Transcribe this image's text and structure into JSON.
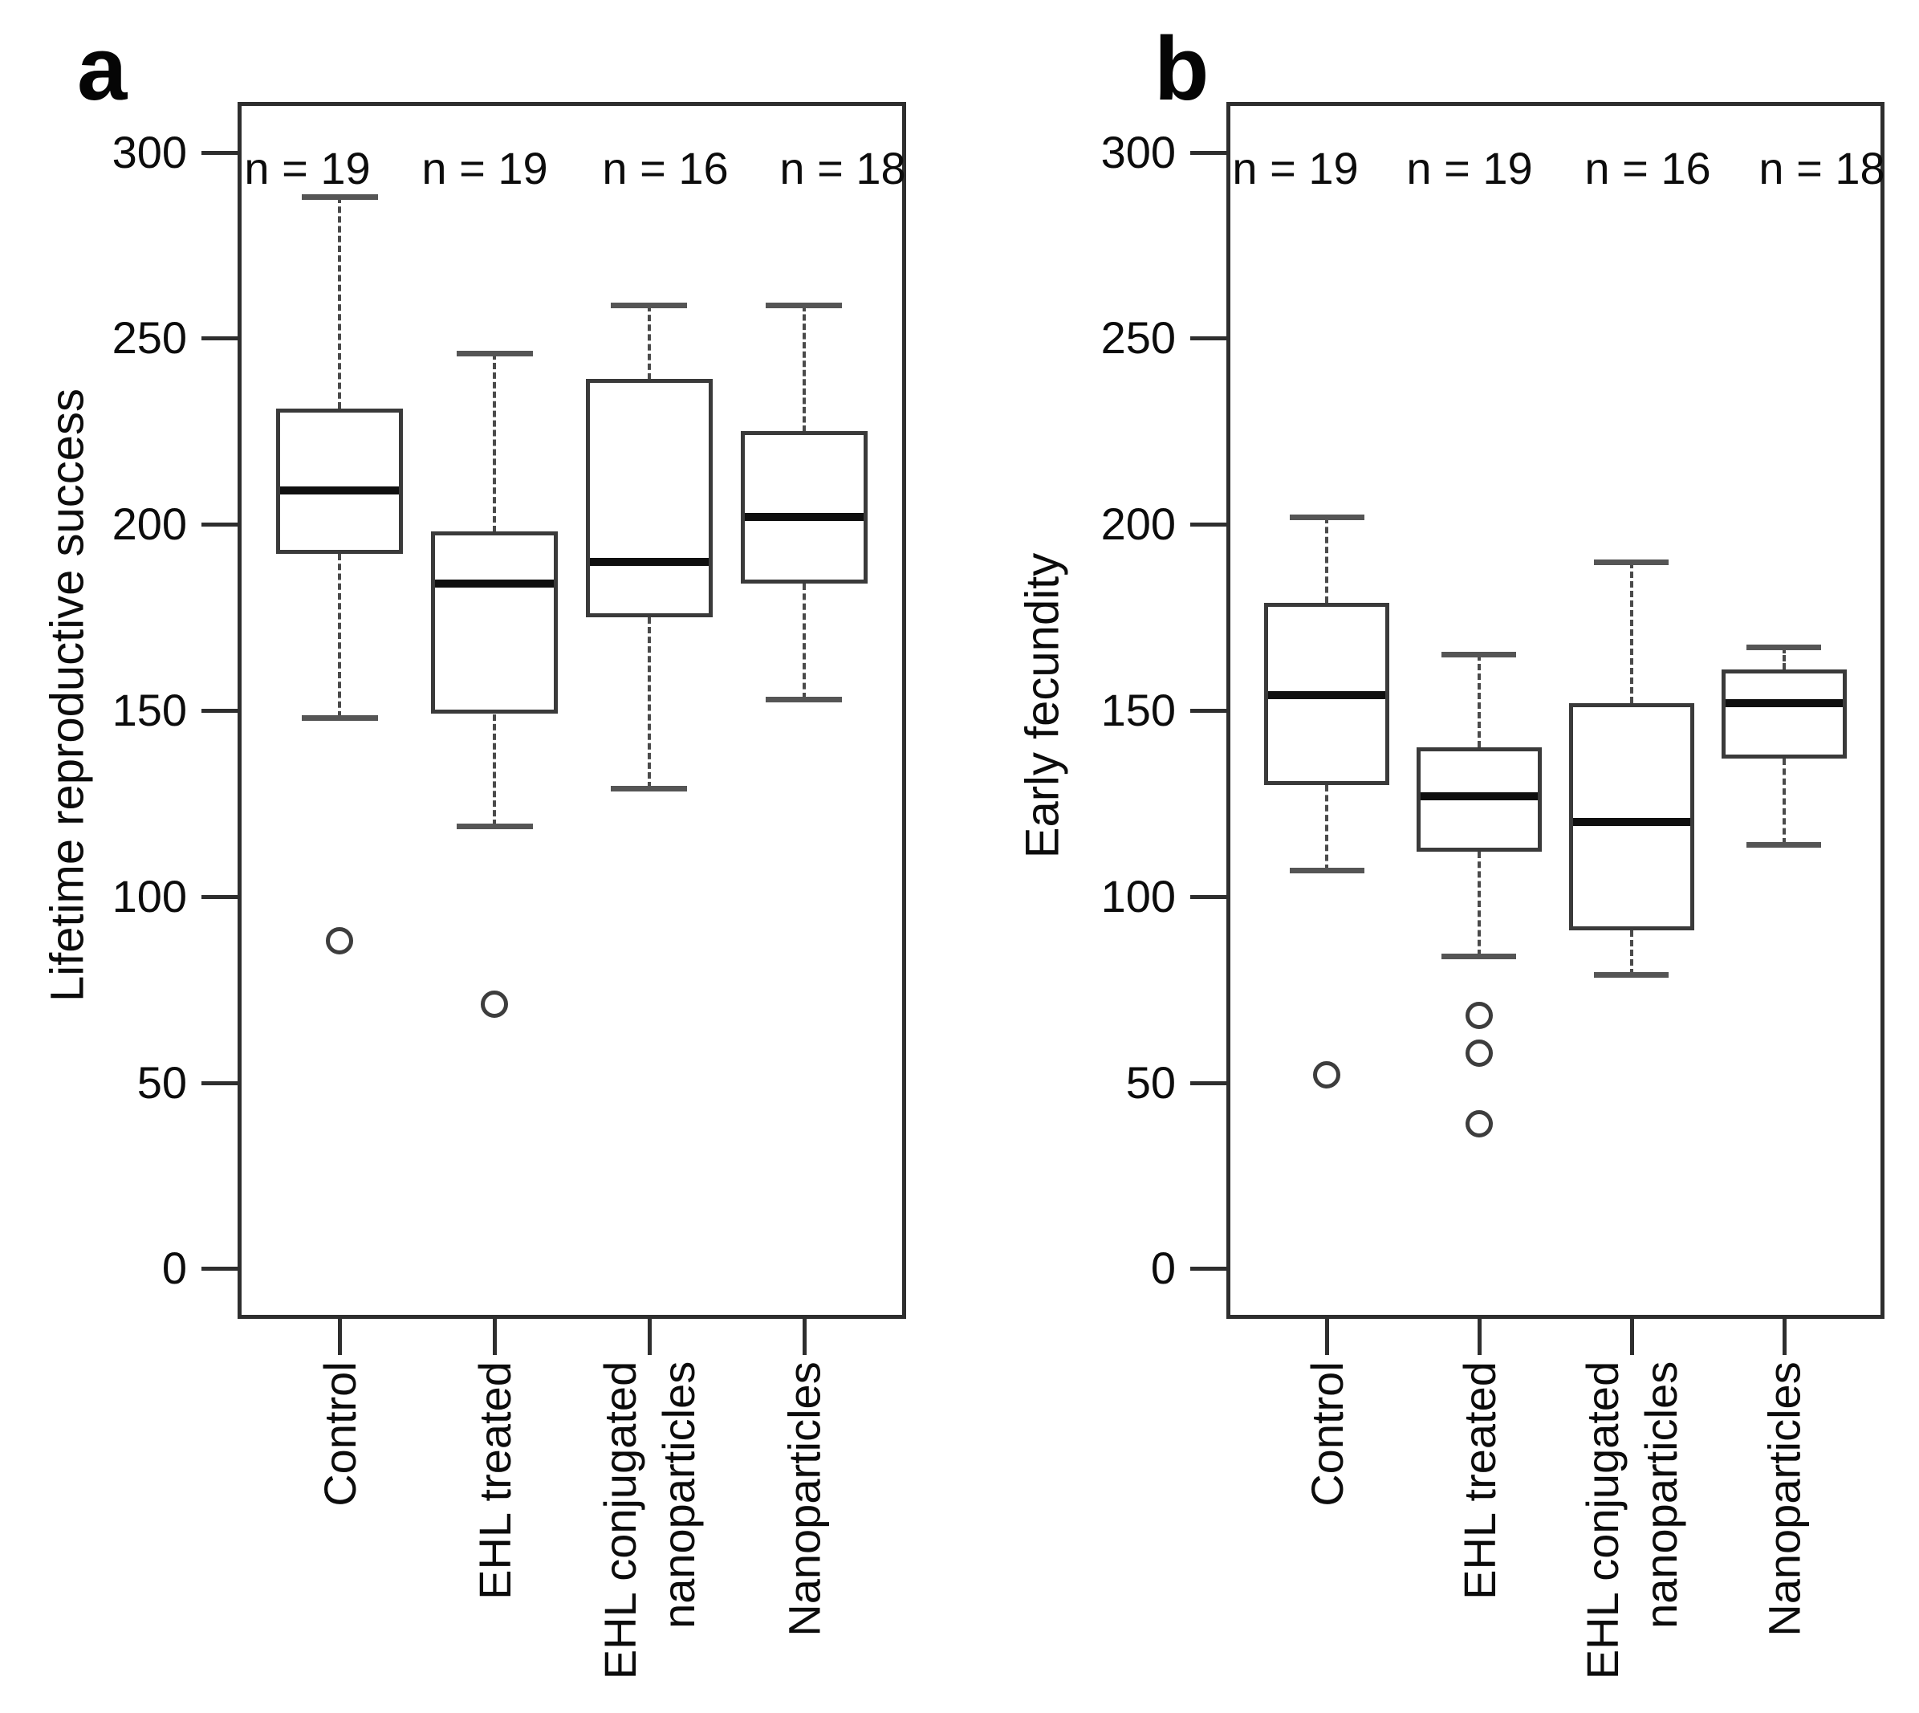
{
  "figure": {
    "background": "#ffffff",
    "ink_color": "#0c0c0c",
    "panels": [
      {
        "letter": "a",
        "y_label": "Lifetime reproductive success"
      },
      {
        "letter": "b",
        "y_label": "Early fecundity"
      }
    ]
  },
  "chart_data": [
    {
      "type": "boxplot",
      "panel": "a",
      "ylabel": "Lifetime reproductive success",
      "ylim": [
        0,
        300
      ],
      "yticks": [
        0,
        50,
        100,
        150,
        200,
        250,
        300
      ],
      "grid": false,
      "categories": [
        "Control",
        "EHL treated",
        "EHL conjugated\nnanoparticles",
        "Nanoparticles"
      ],
      "n_labels": [
        "n = 19",
        "n = 19",
        "n = 16",
        "n = 18"
      ],
      "series": [
        {
          "category": "Control",
          "n": 19,
          "whisker_low": 148,
          "q1": 192,
          "median": 209,
          "q3": 231,
          "whisker_high": 288,
          "outliers": [
            88
          ]
        },
        {
          "category": "EHL treated",
          "n": 19,
          "whisker_low": 119,
          "q1": 149,
          "median": 184,
          "q3": 198,
          "whisker_high": 246,
          "outliers": [
            71
          ]
        },
        {
          "category": "EHL conjugated nanoparticles",
          "n": 16,
          "whisker_low": 129,
          "q1": 175,
          "median": 190,
          "q3": 239,
          "whisker_high": 259,
          "outliers": []
        },
        {
          "category": "Nanoparticles",
          "n": 18,
          "whisker_low": 153,
          "q1": 184,
          "median": 202,
          "q3": 225,
          "whisker_high": 259,
          "outliers": []
        }
      ]
    },
    {
      "type": "boxplot",
      "panel": "b",
      "ylabel": "Early fecundity",
      "ylim": [
        0,
        300
      ],
      "yticks": [
        0,
        50,
        100,
        150,
        200,
        250,
        300
      ],
      "grid": false,
      "categories": [
        "Control",
        "EHL treated",
        "EHL conjugated\nnanoparticles",
        "Nanoparticles"
      ],
      "n_labels": [
        "n = 19",
        "n = 19",
        "n = 16",
        "n = 18"
      ],
      "series": [
        {
          "category": "Control",
          "n": 19,
          "whisker_low": 107,
          "q1": 130,
          "median": 154,
          "q3": 179,
          "whisker_high": 202,
          "outliers": [
            52
          ]
        },
        {
          "category": "EHL treated",
          "n": 19,
          "whisker_low": 84,
          "q1": 112,
          "median": 127,
          "q3": 140,
          "whisker_high": 165,
          "outliers": [
            68,
            58,
            39
          ]
        },
        {
          "category": "EHL conjugated nanoparticles",
          "n": 16,
          "whisker_low": 79,
          "q1": 91,
          "median": 120,
          "q3": 152,
          "whisker_high": 190,
          "outliers": []
        },
        {
          "category": "Nanoparticles",
          "n": 18,
          "whisker_low": 114,
          "q1": 137,
          "median": 152,
          "q3": 161,
          "whisker_high": 167,
          "outliers": []
        }
      ]
    }
  ]
}
